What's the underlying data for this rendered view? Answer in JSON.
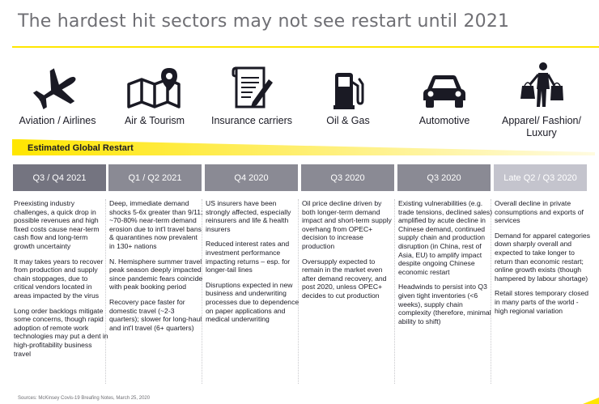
{
  "title": "The hardest hit sectors may not see restart until 2021",
  "sectors": [
    {
      "label": "Aviation / Airlines",
      "icon": "airplane-icon"
    },
    {
      "label": "Air & Tourism",
      "icon": "map-pin-icon"
    },
    {
      "label": "Insurance carriers",
      "icon": "document-pen-icon"
    },
    {
      "label": "Oil & Gas",
      "icon": "fuel-pump-icon"
    },
    {
      "label": "Automotive",
      "icon": "car-icon"
    },
    {
      "label": "Apparel/ Fashion/ Luxury",
      "icon": "shopping-bags-icon"
    }
  ],
  "restart": {
    "label": "Estimated Global Restart"
  },
  "columns": [
    {
      "header": "Q3 / Q4 2021",
      "paragraphs": [
        "Preexisting industry challenges, a quick drop in possible revenues and high fixed costs cause near-term cash flow and long-term growth uncertainty",
        "It may takes years to recover from production and supply chain stoppages, due to critical vendors located in areas impacted by the virus",
        "Long order backlogs mitigate some concerns, though rapid adoption of remote work technologies may put a dent in high-profitability business travel"
      ]
    },
    {
      "header": "Q1 / Q2 2021",
      "paragraphs": [
        "Deep, immediate demand shocks 5-6x greater than 9/11; ~70-80% near-term demand erosion due to int'l travel bans & quarantines now prevalent in 130+ nations",
        "N. Hemisphere summer travel peak season deeply impacted since pandemic fears coincide with peak booking period",
        "Recovery pace faster for domestic travel (~2-3 quarters); slower for long-haul and int'l travel (6+ quarters)"
      ]
    },
    {
      "header": "Q4 2020",
      "paragraphs": [
        "US insurers have been strongly affected, especially reinsurers and life & health insurers",
        "Reduced interest rates and investment performance impacting returns – esp. for longer-tail lines",
        "Disruptions expected in new business and underwriting processes due to dependence on paper applications and medical underwriting"
      ]
    },
    {
      "header": "Q3 2020",
      "paragraphs": [
        "Oil price decline driven by both longer-term demand impact and short-term supply overhang from OPEC+ decision to increase production",
        "Oversupply expected to remain in the market even after demand recovery, and post 2020, unless OPEC+ decides to cut production"
      ]
    },
    {
      "header": "Q3 2020",
      "paragraphs": [
        "Existing vulnerabilities (e.g. trade tensions, declined sales) amplified by acute decline in Chinese demand, continued supply chain and production disruption (in China, rest of Asia, EU) to amplify impact despite ongoing Chinese economic restart",
        "Headwinds to persist into Q3 given tight inventories (<6 weeks), supply chain complexity (therefore, minimal ability to shift)"
      ]
    },
    {
      "header": "Late Q2 / Q3 2020",
      "paragraphs": [
        "Overall decline in private consumptions and exports of services",
        "Demand for apparel categories down sharply overall and expected to take longer to return than economic restart; online growth exists (though hampered by labour shortage)",
        "Retail stores temporary closed in many parts of the world - high regional variation"
      ]
    }
  ],
  "source": "Sources: McKinsey Covis-19 Breafing Notes, March 25, 2020",
  "colors": {
    "accent_yellow": "#ffe600",
    "title_gray": "#6f6f74",
    "header_dark": "#747480",
    "header_mid": "#8a8a94",
    "header_light": "#c4c4cd"
  }
}
